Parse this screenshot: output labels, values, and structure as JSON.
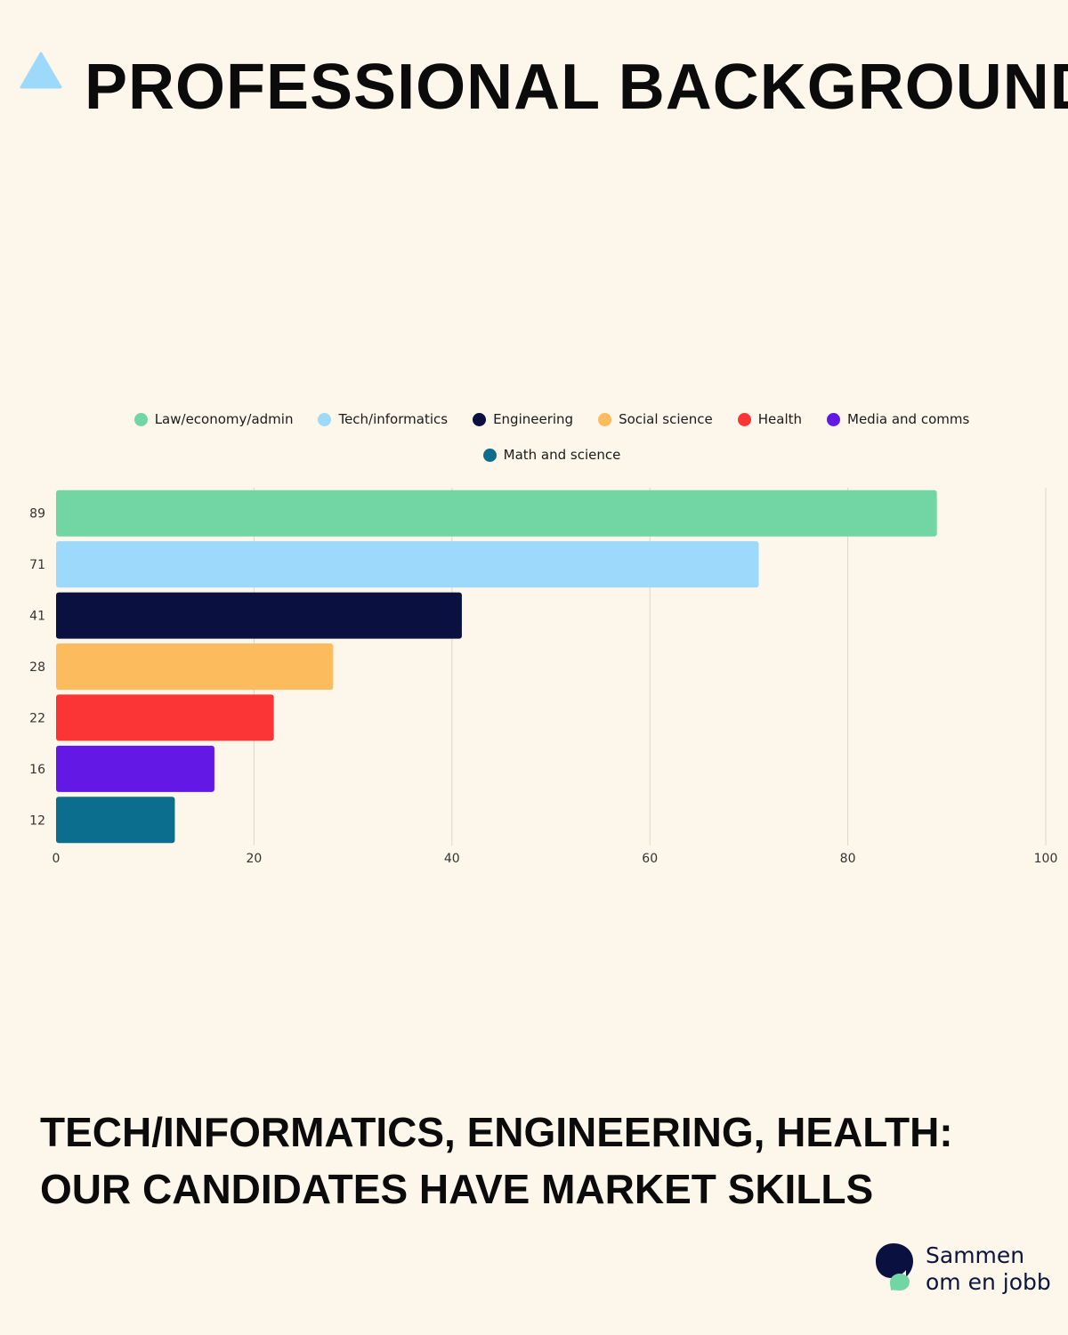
{
  "header": {
    "title": "PROFESSIONAL BACKGROUND",
    "icon": "triangle-icon",
    "icon_color": "#9dd9fb"
  },
  "chart_data": {
    "type": "bar",
    "orientation": "horizontal",
    "categories": [
      "89",
      "71",
      "41",
      "28",
      "22",
      "16",
      "12"
    ],
    "series": [
      {
        "name": "Law/economy/admin",
        "color": "#72d5a4",
        "value": 89
      },
      {
        "name": "Tech/informatics",
        "color": "#9dd9fb",
        "value": 71
      },
      {
        "name": "Engineering",
        "color": "#0a1140",
        "value": 41
      },
      {
        "name": "Social science",
        "color": "#fcbb5d",
        "value": 28
      },
      {
        "name": "Health",
        "color": "#fb3535",
        "value": 22
      },
      {
        "name": "Media and comms",
        "color": "#6418e6",
        "value": 16
      },
      {
        "name": "Math and science",
        "color": "#0b6e8e",
        "value": 12
      }
    ],
    "xlim": [
      0,
      100
    ],
    "x_ticks": [
      "0",
      "20",
      "40",
      "60",
      "80",
      "100"
    ],
    "grid": "vertical",
    "legend": "top"
  },
  "caption": {
    "line1": "TECH/INFORMATICS, ENGINEERING, HEALTH:",
    "line2": "OUR CANDIDATES HAVE MARKET SKILLS"
  },
  "logo": {
    "line1": "Sammen",
    "line2": "om en jobb",
    "icon": "speech-bubble-icon",
    "colors": [
      "#0a1140",
      "#72d5a4"
    ]
  }
}
